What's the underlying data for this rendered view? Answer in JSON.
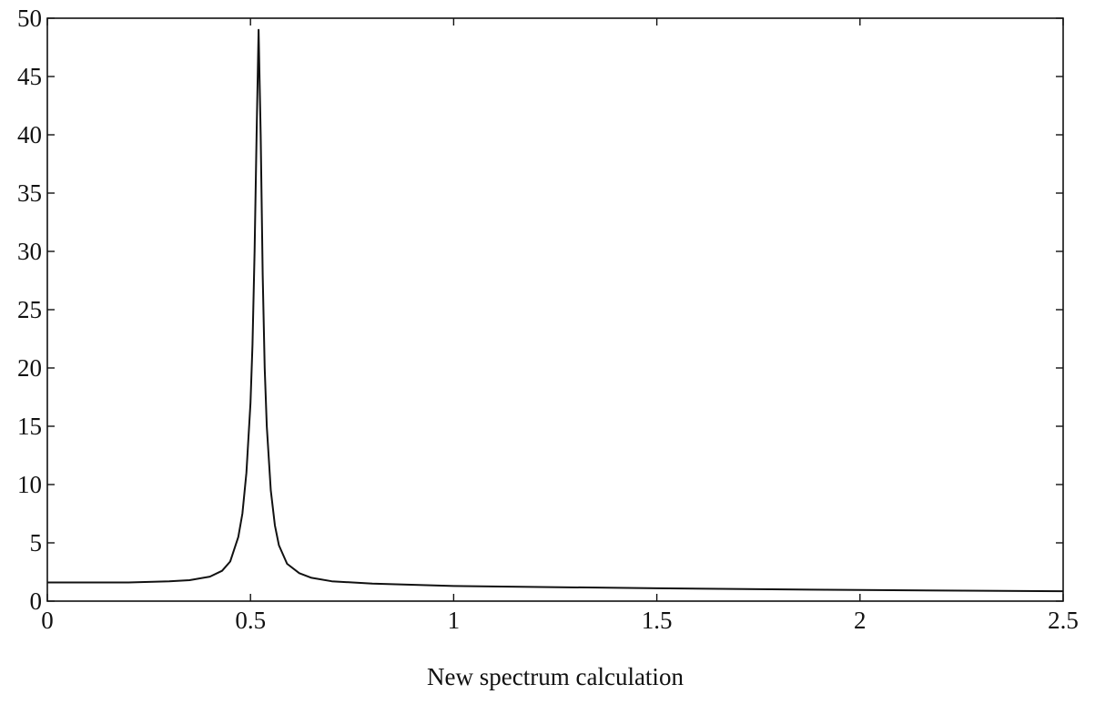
{
  "chart_data": {
    "type": "line",
    "title": "",
    "xlabel": "New spectrum calculation",
    "ylabel": "",
    "xlim": [
      0,
      2.5
    ],
    "ylim": [
      0,
      50
    ],
    "x_ticks": [
      0,
      0.5,
      1,
      1.5,
      2,
      2.5
    ],
    "x_tick_labels": [
      "0",
      "0.5",
      "1",
      "1.5",
      "2",
      "2.5"
    ],
    "y_ticks": [
      0,
      5,
      10,
      15,
      20,
      25,
      30,
      35,
      40,
      45,
      50
    ],
    "y_tick_labels": [
      "0",
      "5",
      "10",
      "15",
      "20",
      "25",
      "30",
      "35",
      "40",
      "45",
      "50"
    ],
    "grid": false,
    "legend": "none",
    "series": [
      {
        "color": "#111111",
        "x": [
          0,
          0.1,
          0.2,
          0.3,
          0.35,
          0.4,
          0.43,
          0.45,
          0.47,
          0.48,
          0.49,
          0.5,
          0.505,
          0.51,
          0.515,
          0.52,
          0.525,
          0.53,
          0.535,
          0.54,
          0.55,
          0.56,
          0.57,
          0.59,
          0.62,
          0.65,
          0.7,
          0.8,
          1.0,
          1.5,
          2.0,
          2.5
        ],
        "y": [
          1.6,
          1.6,
          1.6,
          1.7,
          1.8,
          2.1,
          2.6,
          3.4,
          5.5,
          7.5,
          11.0,
          17.0,
          22.0,
          30.0,
          40.0,
          49.0,
          40.0,
          28.0,
          20.0,
          15.0,
          9.5,
          6.5,
          4.8,
          3.2,
          2.4,
          2.0,
          1.7,
          1.5,
          1.3,
          1.1,
          0.95,
          0.85
        ]
      }
    ]
  }
}
